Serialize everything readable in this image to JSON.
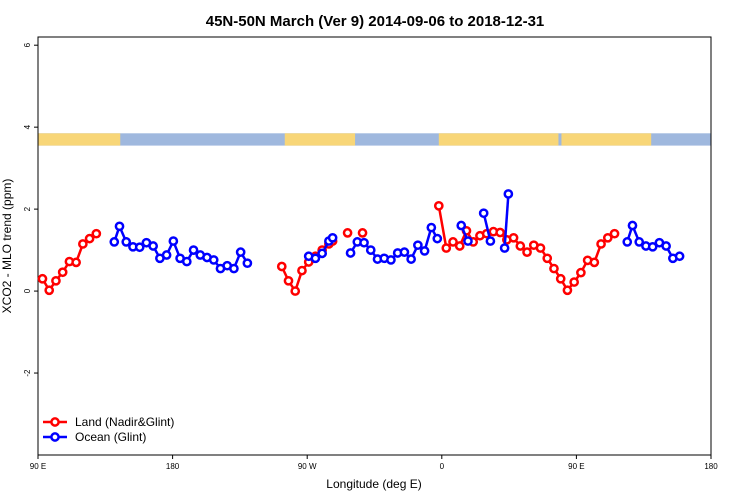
{
  "chart_data": {
    "type": "line",
    "title": "45N-50N March (Ver 9)   2014-09-06 to 2018-12-31",
    "xlabel": "Longitude (deg E)",
    "ylabel": "XCO2 - MLO trend (ppm)",
    "xlim": [
      90,
      540
    ],
    "ylim": [
      -4,
      6.2
    ],
    "x_ticks": [
      {
        "value": 90,
        "label": "90 E"
      },
      {
        "value": 180,
        "label": "180"
      },
      {
        "value": 270,
        "label": "90 W"
      },
      {
        "value": 360,
        "label": "0"
      },
      {
        "value": 450,
        "label": "90 E"
      },
      {
        "value": 540,
        "label": "180"
      }
    ],
    "y_ticks": [
      {
        "value": -2,
        "label": "-2"
      },
      {
        "value": 0,
        "label": "0"
      },
      {
        "value": 2,
        "label": "2"
      },
      {
        "value": 4,
        "label": "4"
      },
      {
        "value": 6,
        "label": "6"
      }
    ],
    "legend": {
      "position": "bottom-left"
    },
    "colors": {
      "land": "#ff0000",
      "ocean": "#0000ff",
      "map_land": "#f8d678",
      "map_ocean": "#9fb8de"
    },
    "map_strip": {
      "y_range": [
        3.55,
        3.85
      ],
      "land_ranges": [
        [
          90,
          145
        ],
        [
          255,
          302
        ],
        [
          358,
          438
        ],
        [
          440,
          500
        ]
      ]
    },
    "series": [
      {
        "name": "Land (Nadir&Glint)",
        "key": "land",
        "segments": [
          [
            [
              93,
              0.3
            ],
            [
              97.5,
              0.02
            ],
            [
              102,
              0.25
            ],
            [
              106.5,
              0.46
            ],
            [
              111,
              0.72
            ],
            [
              115.5,
              0.7
            ],
            [
              120,
              1.15
            ],
            [
              124.5,
              1.28
            ],
            [
              129,
              1.4
            ]
          ],
          [
            [
              253,
              0.6
            ],
            [
              257.5,
              0.25
            ],
            [
              262,
              0.0
            ],
            [
              266.5,
              0.5
            ],
            [
              271,
              0.71
            ],
            [
              275.5,
              0.85
            ],
            [
              280,
              1.0
            ],
            [
              284.5,
              1.15
            ],
            [
              287,
              1.22
            ]
          ],
          [
            [
              297,
              1.42
            ]
          ],
          [
            [
              307,
              1.42
            ]
          ],
          [
            [
              358,
              2.08
            ],
            [
              363,
              1.05
            ],
            [
              367.5,
              1.2
            ],
            [
              372,
              1.1
            ],
            [
              376.5,
              1.47
            ],
            [
              381,
              1.2
            ],
            [
              385.5,
              1.35
            ],
            [
              390,
              1.4
            ],
            [
              394.5,
              1.45
            ],
            [
              399,
              1.43
            ],
            [
              403.5,
              1.25
            ],
            [
              408,
              1.3
            ],
            [
              412.5,
              1.1
            ],
            [
              417,
              0.95
            ],
            [
              421.5,
              1.12
            ],
            [
              426,
              1.05
            ],
            [
              430.5,
              0.8
            ],
            [
              435,
              0.55
            ],
            [
              439.5,
              0.3
            ],
            [
              444,
              0.02
            ],
            [
              448.5,
              0.22
            ],
            [
              453,
              0.45
            ],
            [
              457.5,
              0.75
            ],
            [
              462,
              0.7
            ],
            [
              466.5,
              1.15
            ],
            [
              471,
              1.3
            ],
            [
              475.5,
              1.4
            ]
          ]
        ]
      },
      {
        "name": "Ocean (Glint)",
        "key": "ocean",
        "segments": [
          [
            [
              141,
              1.2
            ],
            [
              144.5,
              1.58
            ],
            [
              149,
              1.2
            ],
            [
              153.5,
              1.08
            ],
            [
              158,
              1.07
            ],
            [
              162.5,
              1.18
            ],
            [
              167,
              1.1
            ],
            [
              171.5,
              0.8
            ],
            [
              176,
              0.88
            ],
            [
              180.5,
              1.22
            ],
            [
              185,
              0.8
            ],
            [
              189.5,
              0.72
            ],
            [
              194,
              1.0
            ],
            [
              198.5,
              0.88
            ],
            [
              203,
              0.82
            ],
            [
              207.5,
              0.76
            ],
            [
              212,
              0.55
            ],
            [
              216.5,
              0.62
            ],
            [
              221,
              0.55
            ],
            [
              225.5,
              0.95
            ],
            [
              230,
              0.68
            ]
          ],
          [
            [
              271,
              0.85
            ],
            [
              275.5,
              0.8
            ],
            [
              280,
              0.92
            ],
            [
              284.5,
              1.22
            ],
            [
              287,
              1.3
            ]
          ],
          [
            [
              299,
              0.93
            ],
            [
              303.5,
              1.2
            ],
            [
              308,
              1.18
            ],
            [
              312.5,
              1.0
            ],
            [
              317,
              0.78
            ],
            [
              321.5,
              0.8
            ],
            [
              326,
              0.76
            ],
            [
              330.5,
              0.93
            ],
            [
              335,
              0.95
            ],
            [
              339.5,
              0.78
            ],
            [
              344,
              1.12
            ],
            [
              348.5,
              0.98
            ],
            [
              353,
              1.55
            ],
            [
              357,
              1.28
            ]
          ],
          [
            [
              373,
              1.6
            ],
            [
              377.5,
              1.22
            ]
          ],
          [
            [
              388,
              1.9
            ],
            [
              392.5,
              1.22
            ]
          ],
          [
            [
              402,
              1.05
            ],
            [
              404.5,
              2.37
            ]
          ],
          [
            [
              484,
              1.2
            ],
            [
              487.5,
              1.6
            ],
            [
              492,
              1.2
            ],
            [
              496.5,
              1.1
            ],
            [
              501,
              1.08
            ],
            [
              505.5,
              1.18
            ],
            [
              510,
              1.1
            ],
            [
              514.5,
              0.8
            ],
            [
              519,
              0.85
            ]
          ]
        ]
      }
    ]
  }
}
